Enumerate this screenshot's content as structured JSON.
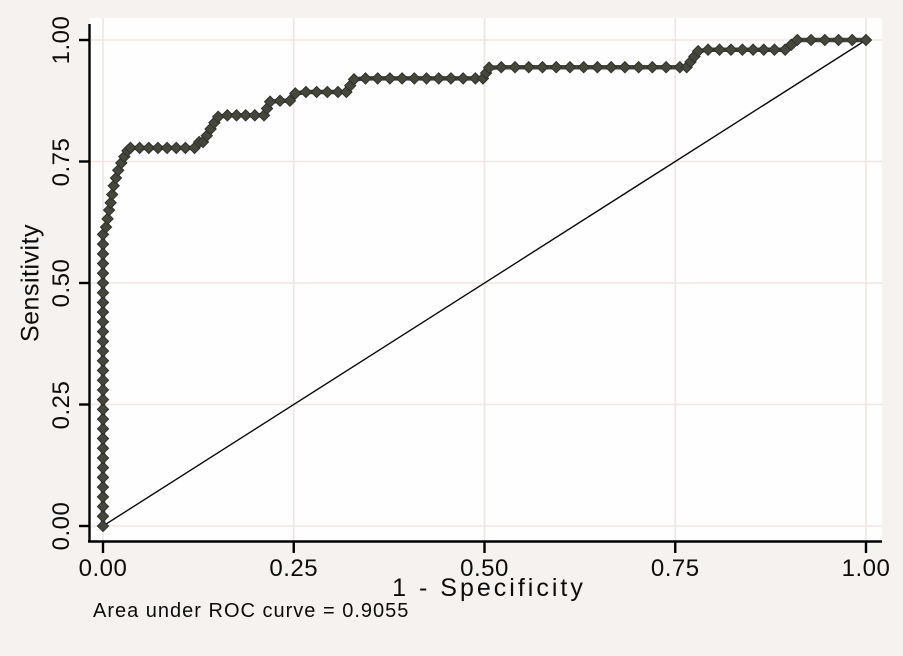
{
  "figure": {
    "kind": "Stata-style ROC curve plot",
    "background_color": "#f6f2ef",
    "plot_background_color": "#fefefe"
  },
  "chart_data": {
    "type": "line",
    "title": "",
    "xlabel": "1 - Specificity",
    "ylabel": "Sensitivity",
    "note": "Area under ROC curve = 0.9055",
    "auc": 0.9055,
    "xlim": [
      0,
      1
    ],
    "ylim": [
      0,
      1
    ],
    "grid": true,
    "legend": "none",
    "x_ticks": [
      {
        "v": 0.0,
        "label": "0.00"
      },
      {
        "v": 0.25,
        "label": "0.25"
      },
      {
        "v": 0.5,
        "label": "0.50"
      },
      {
        "v": 0.75,
        "label": "0.75"
      },
      {
        "v": 1.0,
        "label": "1.00"
      }
    ],
    "y_ticks": [
      {
        "v": 0.0,
        "label": "0.00"
      },
      {
        "v": 0.25,
        "label": "0.25"
      },
      {
        "v": 0.5,
        "label": "0.50"
      },
      {
        "v": 0.75,
        "label": "0.75"
      },
      {
        "v": 1.0,
        "label": "1.00"
      }
    ],
    "colors": {
      "roc_curve": "#45473d",
      "roc_marker_edge": "#2f312a",
      "reference_line": "#0a0a0a",
      "grid_line": "#f1e5df",
      "axis_line": "#000000",
      "text": "#0c0c0c"
    },
    "series": [
      {
        "name": "ROC curve",
        "marker": "diamond",
        "points": [
          [
            0,
            0
          ],
          [
            0,
            0.02
          ],
          [
            0,
            0.04
          ],
          [
            0,
            0.06
          ],
          [
            0,
            0.08
          ],
          [
            0,
            0.1
          ],
          [
            0,
            0.12
          ],
          [
            0,
            0.14
          ],
          [
            0,
            0.16
          ],
          [
            0,
            0.18
          ],
          [
            0,
            0.2
          ],
          [
            0,
            0.22
          ],
          [
            0,
            0.24
          ],
          [
            0,
            0.26
          ],
          [
            0,
            0.28
          ],
          [
            0,
            0.3
          ],
          [
            0,
            0.32
          ],
          [
            0,
            0.34
          ],
          [
            0,
            0.36
          ],
          [
            0,
            0.38
          ],
          [
            0,
            0.4
          ],
          [
            0,
            0.42
          ],
          [
            0,
            0.44
          ],
          [
            0,
            0.46
          ],
          [
            0,
            0.48
          ],
          [
            0,
            0.5
          ],
          [
            0,
            0.52
          ],
          [
            0,
            0.54
          ],
          [
            0,
            0.56
          ],
          [
            0,
            0.58
          ],
          [
            0,
            0.6
          ],
          [
            0.004,
            0.615
          ],
          [
            0.006,
            0.632
          ],
          [
            0.008,
            0.65
          ],
          [
            0.01,
            0.665
          ],
          [
            0.012,
            0.682
          ],
          [
            0.014,
            0.7
          ],
          [
            0.017,
            0.716
          ],
          [
            0.02,
            0.732
          ],
          [
            0.024,
            0.747
          ],
          [
            0.028,
            0.76
          ],
          [
            0.032,
            0.772
          ],
          [
            0.036,
            0.778
          ],
          [
            0.048,
            0.778
          ],
          [
            0.06,
            0.778
          ],
          [
            0.072,
            0.778
          ],
          [
            0.084,
            0.778
          ],
          [
            0.096,
            0.778
          ],
          [
            0.108,
            0.778
          ],
          [
            0.12,
            0.778
          ],
          [
            0.126,
            0.79
          ],
          [
            0.131,
            0.79
          ],
          [
            0.136,
            0.803
          ],
          [
            0.141,
            0.817
          ],
          [
            0.146,
            0.83
          ],
          [
            0.151,
            0.842
          ],
          [
            0.163,
            0.845
          ],
          [
            0.175,
            0.845
          ],
          [
            0.187,
            0.845
          ],
          [
            0.199,
            0.845
          ],
          [
            0.211,
            0.845
          ],
          [
            0.215,
            0.859
          ],
          [
            0.219,
            0.873
          ],
          [
            0.232,
            0.875
          ],
          [
            0.245,
            0.875
          ],
          [
            0.252,
            0.89
          ],
          [
            0.266,
            0.893
          ],
          [
            0.28,
            0.893
          ],
          [
            0.294,
            0.893
          ],
          [
            0.308,
            0.893
          ],
          [
            0.319,
            0.893
          ],
          [
            0.324,
            0.906
          ],
          [
            0.329,
            0.919
          ],
          [
            0.344,
            0.921
          ],
          [
            0.36,
            0.921
          ],
          [
            0.376,
            0.921
          ],
          [
            0.392,
            0.921
          ],
          [
            0.408,
            0.921
          ],
          [
            0.424,
            0.921
          ],
          [
            0.44,
            0.921
          ],
          [
            0.456,
            0.921
          ],
          [
            0.472,
            0.921
          ],
          [
            0.488,
            0.921
          ],
          [
            0.498,
            0.921
          ],
          [
            0.502,
            0.932
          ],
          [
            0.506,
            0.943
          ],
          [
            0.522,
            0.944
          ],
          [
            0.54,
            0.944
          ],
          [
            0.558,
            0.944
          ],
          [
            0.576,
            0.944
          ],
          [
            0.594,
            0.944
          ],
          [
            0.612,
            0.944
          ],
          [
            0.63,
            0.944
          ],
          [
            0.648,
            0.944
          ],
          [
            0.666,
            0.944
          ],
          [
            0.684,
            0.944
          ],
          [
            0.702,
            0.944
          ],
          [
            0.72,
            0.944
          ],
          [
            0.738,
            0.944
          ],
          [
            0.756,
            0.944
          ],
          [
            0.765,
            0.944
          ],
          [
            0.77,
            0.955
          ],
          [
            0.775,
            0.966
          ],
          [
            0.78,
            0.977
          ],
          [
            0.793,
            0.98
          ],
          [
            0.808,
            0.98
          ],
          [
            0.823,
            0.98
          ],
          [
            0.838,
            0.98
          ],
          [
            0.852,
            0.98
          ],
          [
            0.866,
            0.98
          ],
          [
            0.88,
            0.98
          ],
          [
            0.894,
            0.98
          ],
          [
            0.902,
            0.99
          ],
          [
            0.91,
            1.0
          ],
          [
            0.928,
            1.0
          ],
          [
            0.946,
            1.0
          ],
          [
            0.964,
            1.0
          ],
          [
            0.982,
            1.0
          ],
          [
            1.0,
            1.0
          ]
        ]
      },
      {
        "name": "Reference diagonal",
        "marker": "none",
        "points": [
          [
            0,
            0
          ],
          [
            1,
            1
          ]
        ]
      }
    ]
  }
}
